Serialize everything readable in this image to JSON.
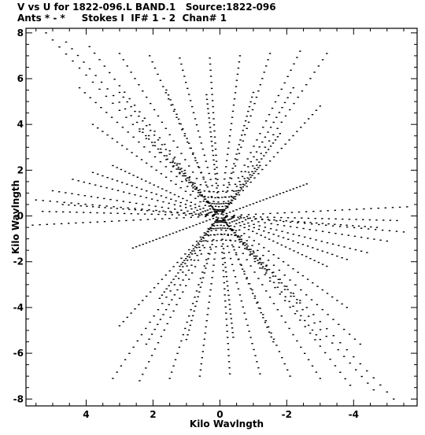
{
  "header": {
    "line1": "V vs U for 1822-096.L BAND.1   Source:1822-096",
    "line2": "Ants * - *     Stokes I  IF# 1 - 2  Chan# 1"
  },
  "chart_data": {
    "type": "scatter",
    "title": "V vs U for 1822-096.L BAND.1   Source:1822-096",
    "subtitle": "Ants * - *     Stokes I  IF# 1 - 2  Chan# 1",
    "xlabel": "Kilo Wavlngth",
    "ylabel": "Kilo Wavlngth",
    "xlim": [
      5.8,
      -5.9
    ],
    "ylim": [
      -8.3,
      8.2
    ],
    "x_reversed": true,
    "x_ticks": [
      4,
      2,
      0,
      -2,
      -4
    ],
    "x_tick_labels": [
      "4",
      "2",
      "0",
      "-2",
      "-4"
    ],
    "y_ticks": [
      8,
      6,
      4,
      2,
      0,
      -2,
      -4,
      -6,
      -8
    ],
    "y_tick_labels": [
      "8",
      "6",
      "4",
      "2",
      "0",
      "-2",
      "-4",
      "-6",
      "-8"
    ],
    "grid": false,
    "legend": "none",
    "marker_color": "#000000",
    "uv_tracks": [
      {
        "u_end": 5.2,
        "v_end": 8.0
      },
      {
        "u_end": 4.6,
        "v_end": 7.6
      },
      {
        "u_end": 3.9,
        "v_end": 7.4
      },
      {
        "u_end": 3.0,
        "v_end": 7.1
      },
      {
        "u_end": 2.1,
        "v_end": 7.0
      },
      {
        "u_end": 1.2,
        "v_end": 6.9
      },
      {
        "u_end": 0.3,
        "v_end": 6.9
      },
      {
        "u_end": -0.6,
        "v_end": 7.0
      },
      {
        "u_end": -1.5,
        "v_end": 7.1
      },
      {
        "u_end": -2.4,
        "v_end": 7.2
      },
      {
        "u_end": -3.2,
        "v_end": 7.1
      },
      {
        "u_end": 4.2,
        "v_end": 5.6
      },
      {
        "u_end": 3.0,
        "v_end": 5.4
      },
      {
        "u_end": 1.6,
        "v_end": 5.5
      },
      {
        "u_end": 0.4,
        "v_end": 5.3
      },
      {
        "u_end": -1.0,
        "v_end": 5.4
      },
      {
        "u_end": -2.2,
        "v_end": 5.6
      },
      {
        "u_end": -3.0,
        "v_end": 4.8
      },
      {
        "u_end": 3.8,
        "v_end": 4.0
      },
      {
        "u_end": 2.4,
        "v_end": 3.8
      },
      {
        "u_end": -1.8,
        "v_end": 3.6
      },
      {
        "u_end": 3.2,
        "v_end": 2.2
      },
      {
        "u_end": 1.4,
        "v_end": 2.4
      },
      {
        "u_end": -1.2,
        "v_end": 2.2
      },
      {
        "u_end": 5.5,
        "v_end": 0.7
      },
      {
        "u_end": 5.0,
        "v_end": 1.1
      },
      {
        "u_end": 4.4,
        "v_end": 1.6
      },
      {
        "u_end": 3.8,
        "v_end": 1.9
      },
      {
        "u_end": 5.3,
        "v_end": 0.2
      },
      {
        "u_end": 4.7,
        "v_end": 0.5
      },
      {
        "u_end": 5.6,
        "v_end": -0.4
      },
      {
        "u_end": -2.6,
        "v_end": 1.4
      }
    ]
  }
}
